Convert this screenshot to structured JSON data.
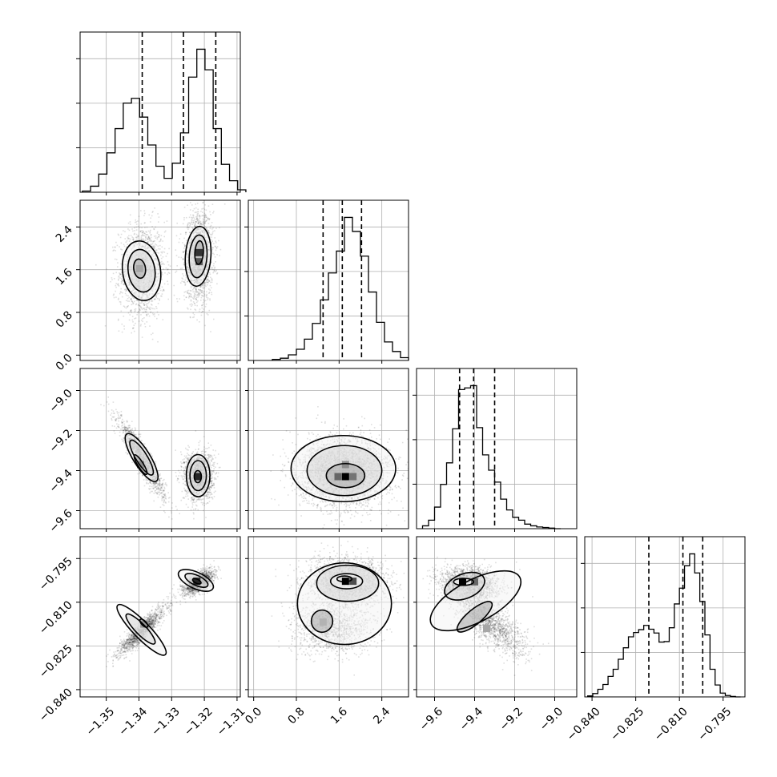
{
  "chart_data": {
    "type": "corner",
    "parameters": [
      {
        "range": [
          -1.358,
          -1.309
        ],
        "ticks": [
          -1.35,
          -1.34,
          -1.33,
          -1.32,
          -1.31
        ],
        "tick_labels": [
          "−1.35",
          "−1.34",
          "−1.33",
          "−1.32",
          "−1.31"
        ],
        "hist_edges": [
          -1.3573,
          -1.3548,
          -1.3523,
          -1.3498,
          -1.3473,
          -1.3448,
          -1.3423,
          -1.3398,
          -1.3373,
          -1.3348,
          -1.3323,
          -1.3298,
          -1.3273,
          -1.3248,
          -1.3223,
          -1.3198,
          -1.3173,
          -1.3148,
          -1.3123,
          -1.3098,
          -1.3073
        ],
        "hist_counts": [
          0.2,
          1.0,
          3.0,
          6.5,
          10.5,
          14.7,
          15.5,
          12.4,
          7.8,
          4.3,
          2.3,
          4.8,
          9.8,
          19.0,
          23.6,
          20.2,
          10.5,
          4.6,
          1.9,
          0.4
        ],
        "quantiles": [
          -1.339,
          -1.3264,
          -1.3165
        ]
      },
      {
        "range": [
          -0.1,
          2.9
        ],
        "ticks": [
          0.0,
          0.8,
          1.6,
          2.4
        ],
        "tick_labels": [
          "0.0",
          "0.8",
          "1.6",
          "2.4"
        ],
        "hist_edges": [
          0.35,
          0.5,
          0.65,
          0.8,
          0.95,
          1.1,
          1.25,
          1.4,
          1.55,
          1.7,
          1.85,
          2.0,
          2.15,
          2.3,
          2.45,
          2.6,
          2.75,
          2.9
        ],
        "hist_counts": [
          0.2,
          0.4,
          1.0,
          2.0,
          3.8,
          6.6,
          10.8,
          15.6,
          19.5,
          25.5,
          23.0,
          18.6,
          12.2,
          6.8,
          3.3,
          1.6,
          0.5
        ],
        "quantiles": [
          1.3,
          1.66,
          2.02
        ]
      },
      {
        "range": [
          -9.69,
          -8.89
        ],
        "ticks": [
          -9.6,
          -9.4,
          -9.2,
          -9.0
        ],
        "tick_labels": [
          "−9.6",
          "−9.4",
          "−9.2",
          "−9.0"
        ],
        "hist_edges": [
          -9.66,
          -9.63,
          -9.6,
          -9.57,
          -9.54,
          -9.51,
          -9.48,
          -9.45,
          -9.42,
          -9.39,
          -9.36,
          -9.33,
          -9.3,
          -9.27,
          -9.24,
          -9.21,
          -9.18,
          -9.15,
          -9.12,
          -9.09,
          -9.06,
          -9.03,
          -9.0,
          -8.97
        ],
        "hist_counts": [
          0.5,
          1.5,
          3.8,
          7.8,
          11.6,
          17.6,
          24.5,
          24.8,
          25.2,
          17.8,
          13.0,
          10.3,
          8.2,
          5.2,
          3.3,
          2.0,
          1.5,
          0.8,
          0.5,
          0.3,
          0.2,
          0.1,
          0.0
        ],
        "quantiles": [
          -9.475,
          -9.405,
          -9.3
        ]
      },
      {
        "range": [
          -0.8425,
          -0.7875
        ],
        "ticks": [
          -0.84,
          -0.825,
          -0.81,
          -0.795
        ],
        "tick_labels": [
          "−0.840",
          "−0.825",
          "−0.810",
          "−0.795"
        ],
        "hist_edges": [
          -0.8415,
          -0.83975,
          -0.838,
          -0.83625,
          -0.8345,
          -0.83275,
          -0.831,
          -0.82925,
          -0.8275,
          -0.82575,
          -0.824,
          -0.82225,
          -0.8205,
          -0.81875,
          -0.817,
          -0.81525,
          -0.8135,
          -0.81175,
          -0.81,
          -0.80825,
          -0.8065,
          -0.80475,
          -0.803,
          -0.80125,
          -0.7995,
          -0.79775,
          -0.796,
          -0.79425,
          -0.7925,
          -0.79075,
          -0.789
        ],
        "hist_counts": [
          0.2,
          0.7,
          1.6,
          2.6,
          4.3,
          5.8,
          7.9,
          10.3,
          12.6,
          13.5,
          14.1,
          15.0,
          14.2,
          13.4,
          11.5,
          11.6,
          14.5,
          19.5,
          22.8,
          27.5,
          30.0,
          26.0,
          20.0,
          13.0,
          5.8,
          2.5,
          0.8,
          0.3,
          0.1,
          0.0
        ],
        "quantiles": [
          -0.8205,
          -0.8088,
          -0.802
        ]
      }
    ],
    "joint": [
      {
        "row": 1,
        "col": 0,
        "modes": [
          {
            "center": [
              -1.3392,
              1.58
            ],
            "sigma": [
              0.0035,
              0.45
            ],
            "rho": 0.05,
            "weight": 0.45,
            "points": 1400
          },
          {
            "center": [
              -1.3219,
              1.85
            ],
            "sigma": [
              0.0022,
              0.42
            ],
            "rho": 0.05,
            "weight": 0.55,
            "points": 1700
          }
        ],
        "contours": [
          {
            "center": [
              -1.3392,
              1.58
            ],
            "semi": [
              0.0058,
              0.56
            ],
            "angle": -8
          },
          {
            "center": [
              -1.3392,
              1.58
            ],
            "semi": [
              0.0041,
              0.4
            ],
            "angle": -8
          },
          {
            "center": [
              -1.3398,
              1.62
            ],
            "semi": [
              0.0018,
              0.18
            ],
            "angle": -8
          },
          {
            "center": [
              -1.3219,
              1.85
            ],
            "semi": [
              0.0039,
              0.56
            ],
            "angle": 4
          },
          {
            "center": [
              -1.3219,
              1.85
            ],
            "semi": [
              0.0027,
              0.4
            ],
            "angle": 4
          },
          {
            "center": [
              -1.3216,
              1.92
            ],
            "semi": [
              0.0013,
              0.22
            ],
            "angle": 4
          }
        ],
        "dark_cells": [
          [
            -1.3398,
            1.62,
            0.35
          ],
          [
            -1.3216,
            1.92,
            0.8
          ],
          [
            -1.3216,
            1.75,
            0.65
          ]
        ]
      },
      {
        "row": 2,
        "col": 0,
        "modes": [
          {
            "center": [
              -1.3392,
              -9.335
            ],
            "sigma": [
              0.0035,
              0.095
            ],
            "rho": -0.93,
            "weight": 0.45,
            "points": 1400
          },
          {
            "center": [
              -1.3219,
              -9.425
            ],
            "sigma": [
              0.0022,
              0.06
            ],
            "rho": 0.0,
            "weight": 0.55,
            "points": 1700
          }
        ],
        "contours": [
          {
            "center": [
              -1.3392,
              -9.335
            ],
            "semi": [
              0.0085,
              0.042
            ],
            "angle": 58
          },
          {
            "center": [
              -1.3392,
              -9.335
            ],
            "semi": [
              0.0062,
              0.028
            ],
            "angle": 58
          },
          {
            "center": [
              -1.3395,
              -9.37
            ],
            "semi": [
              0.0035,
              0.014
            ],
            "angle": 58
          },
          {
            "center": [
              -1.3219,
              -9.425
            ],
            "semi": [
              0.0036,
              0.105
            ],
            "angle": 0
          },
          {
            "center": [
              -1.3219,
              -9.425
            ],
            "semi": [
              0.0025,
              0.075
            ],
            "angle": 0
          },
          {
            "center": [
              -1.322,
              -9.43
            ],
            "semi": [
              0.0011,
              0.03
            ],
            "angle": 0
          }
        ],
        "dark_cells": [
          [
            -1.3395,
            -9.37,
            0.45
          ],
          [
            -1.322,
            -9.43,
            0.85
          ]
        ]
      },
      {
        "row": 2,
        "col": 1,
        "modes": [
          {
            "center": [
              1.68,
              -9.405
            ],
            "sigma": [
              0.42,
              0.085
            ],
            "rho": 0.0,
            "weight": 1.0,
            "points": 3100
          }
        ],
        "contours": [
          {
            "center": [
              1.68,
              -9.39
            ],
            "semi": [
              0.98,
              0.165
            ],
            "angle": 0
          },
          {
            "center": [
              1.7,
              -9.4
            ],
            "semi": [
              0.7,
              0.125
            ],
            "angle": 0
          },
          {
            "center": [
              1.72,
              -9.425
            ],
            "semi": [
              0.36,
              0.06
            ],
            "angle": 0
          }
        ],
        "dark_cells": [
          [
            1.72,
            -9.43,
            1.0
          ],
          [
            1.58,
            -9.43,
            0.6
          ],
          [
            1.86,
            -9.43,
            0.55
          ],
          [
            1.72,
            -9.37,
            0.45
          ]
        ]
      },
      {
        "row": 3,
        "col": 0,
        "modes": [
          {
            "center": [
              -1.3392,
              -0.8195
            ],
            "sigma": [
              0.0035,
              0.004
            ],
            "rho": 0.9,
            "weight": 0.45,
            "points": 1400
          },
          {
            "center": [
              -1.3219,
              -0.803
            ],
            "sigma": [
              0.0022,
              0.002
            ],
            "rho": 0.6,
            "weight": 0.55,
            "points": 1700
          }
        ],
        "contours": [
          {
            "center": [
              -1.3392,
              -0.8195
            ],
            "semi": [
              0.0105,
              0.0028
            ],
            "angle": 46
          },
          {
            "center": [
              -1.3395,
              -0.8192
            ],
            "semi": [
              0.0062,
              0.0018
            ],
            "angle": 46
          },
          {
            "center": [
              -1.3385,
              -0.8172
            ],
            "semi": [
              0.0016,
              0.0008
            ],
            "angle": 46
          },
          {
            "center": [
              -1.3226,
              -0.8025
            ],
            "semi": [
              0.0058,
              0.0028
            ],
            "angle": 25
          },
          {
            "center": [
              -1.3224,
              -0.8025
            ],
            "semi": [
              0.0038,
              0.0017
            ],
            "angle": 25
          },
          {
            "center": [
              -1.3223,
              -0.8028
            ],
            "semi": [
              0.0014,
              0.0007
            ],
            "angle": 25
          }
        ],
        "dark_cells": [
          [
            -1.3385,
            -0.8175,
            0.4
          ],
          [
            -1.3223,
            -0.8028,
            0.85
          ]
        ]
      },
      {
        "row": 3,
        "col": 1,
        "modes": [
          {
            "center": [
              1.75,
              -0.8025
            ],
            "sigma": [
              0.38,
              0.004
            ],
            "rho": 0.0,
            "weight": 0.6,
            "points": 1900
          },
          {
            "center": [
              1.48,
              -0.8185
            ],
            "sigma": [
              0.38,
              0.0045
            ],
            "rho": 0.0,
            "weight": 0.4,
            "points": 1200
          }
        ],
        "contours": [
          {
            "center": [
              1.7,
              -0.8105
            ],
            "semi": [
              0.88,
              0.014
            ],
            "angle": 0
          },
          {
            "center": [
              1.76,
              -0.8035
            ],
            "semi": [
              0.58,
              0.0062
            ],
            "angle": 0
          },
          {
            "center": [
              1.28,
              -0.8165
            ],
            "semi": [
              0.2,
              0.0038
            ],
            "angle": 0
          },
          {
            "center": [
              1.74,
              -0.8028
            ],
            "semi": [
              0.3,
              0.0026
            ],
            "angle": 0
          },
          {
            "center": [
              1.7,
              -0.802
            ],
            "semi": [
              0.14,
              0.001
            ],
            "angle": 0
          }
        ],
        "dark_cells": [
          [
            1.72,
            -0.8028,
            1.0
          ],
          [
            1.86,
            -0.8028,
            0.7
          ],
          [
            1.3,
            -0.8168,
            0.3
          ]
        ]
      },
      {
        "row": 3,
        "col": 2,
        "modes": [
          {
            "center": [
              -9.43,
              -0.8035
            ],
            "sigma": [
              0.075,
              0.003
            ],
            "rho": -0.2,
            "weight": 0.55,
            "points": 1700
          },
          {
            "center": [
              -9.33,
              -0.817
            ],
            "sigma": [
              0.09,
              0.0055
            ],
            "rho": -0.75,
            "weight": 0.45,
            "points": 1400
          }
        ],
        "contours": [
          {
            "center": [
              -9.395,
              -0.8095
            ],
            "semi": [
              0.25,
              0.0072
            ],
            "angle": -28
          },
          {
            "center": [
              -9.45,
              -0.8045
            ],
            "semi": [
              0.105,
              0.0042
            ],
            "angle": -22
          },
          {
            "center": [
              -9.4,
              -0.815
            ],
            "semi": [
              0.11,
              0.0025
            ],
            "angle": -40
          },
          {
            "center": [
              -9.455,
              -0.803
            ],
            "semi": [
              0.05,
              0.0012
            ],
            "angle": 0
          }
        ],
        "dark_cells": [
          [
            -9.46,
            -0.803,
            1.0
          ],
          [
            -9.4,
            -0.803,
            0.6
          ],
          [
            -9.34,
            -0.819,
            0.35
          ]
        ]
      }
    ]
  }
}
